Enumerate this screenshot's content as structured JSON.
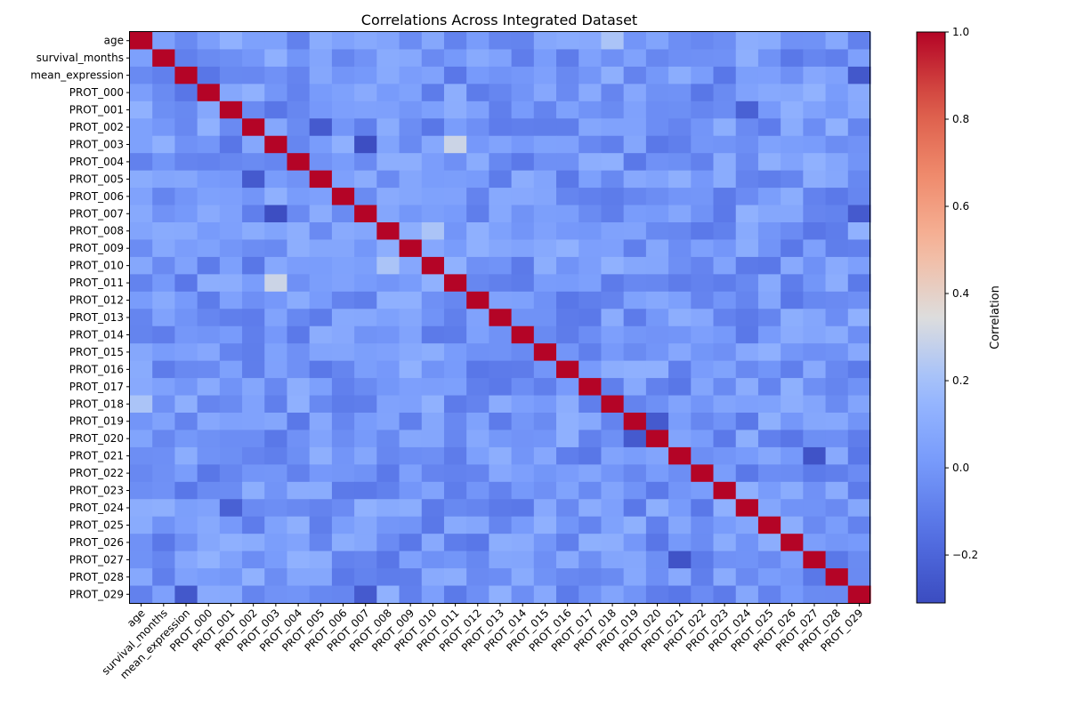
{
  "chart_data": {
    "type": "heatmap",
    "title": "Correlations Across Integrated Dataset",
    "labels": [
      "age",
      "survival_months",
      "mean_expression",
      "PROT_000",
      "PROT_001",
      "PROT_002",
      "PROT_003",
      "PROT_004",
      "PROT_005",
      "PROT_006",
      "PROT_007",
      "PROT_008",
      "PROT_009",
      "PROT_010",
      "PROT_011",
      "PROT_012",
      "PROT_013",
      "PROT_014",
      "PROT_015",
      "PROT_016",
      "PROT_017",
      "PROT_018",
      "PROT_019",
      "PROT_020",
      "PROT_021",
      "PROT_022",
      "PROT_023",
      "PROT_024",
      "PROT_025",
      "PROT_026",
      "PROT_027",
      "PROT_028",
      "PROT_029"
    ],
    "colorbar": {
      "label": "Correlation",
      "vmin": -0.31,
      "vmax": 1.0,
      "ticks": [
        -0.2,
        0.0,
        0.2,
        0.4,
        0.6,
        0.8,
        1.0
      ],
      "tick_labels": [
        "−0.2",
        "0.0",
        "0.2",
        "0.4",
        "0.6",
        "0.8",
        "1.0"
      ],
      "colormap": "coolwarm"
    },
    "notable_values": [
      {
        "row": "PROT_003",
        "col": "PROT_007",
        "value": -0.3
      },
      {
        "row": "PROT_003",
        "col": "PROT_011",
        "value": 0.3
      },
      {
        "row": "PROT_005",
        "col": "PROT_002",
        "value": -0.25
      },
      {
        "row": "PROT_021",
        "col": "PROT_027",
        "value": -0.28
      },
      {
        "row": "PROT_019",
        "col": "PROT_020",
        "value": -0.25
      },
      {
        "row": "PROT_029",
        "col": "mean_expression",
        "value": -0.26
      },
      {
        "row": "PROT_007",
        "col": "PROT_029",
        "value": -0.25
      },
      {
        "row": "PROT_001",
        "col": "PROT_024",
        "value": -0.22
      },
      {
        "row": "PROT_008",
        "col": "PROT_010",
        "value": 0.22
      },
      {
        "row": "age",
        "col": "PROT_018",
        "value": 0.22
      }
    ]
  }
}
